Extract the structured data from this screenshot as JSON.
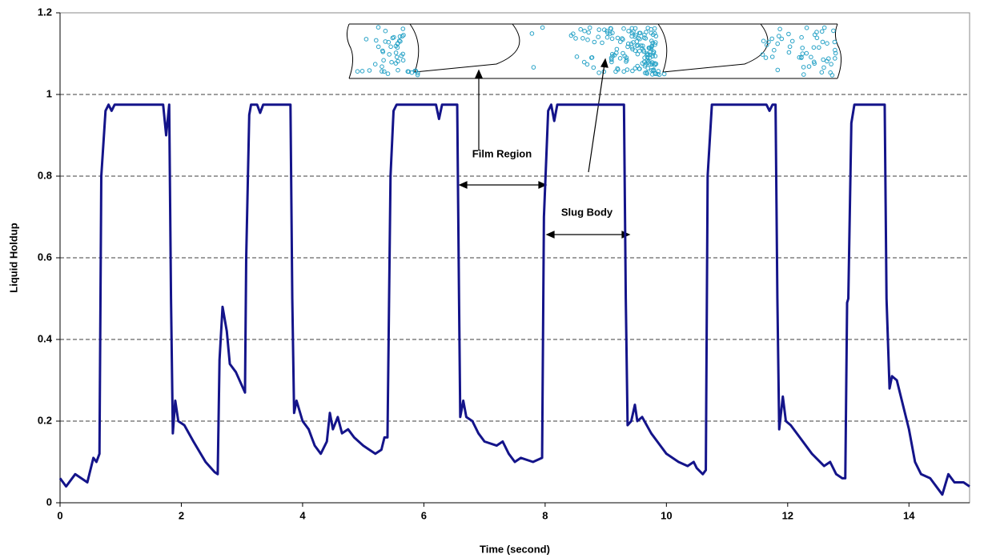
{
  "chart_data": {
    "type": "line",
    "x_label": "Time (second)",
    "y_label": "Liquid Holdup",
    "annotations": [
      "Film Region",
      "Slug Body"
    ],
    "xlim": [
      0,
      15
    ],
    "xticks": [
      0,
      2,
      4,
      6,
      8,
      10,
      12,
      14
    ],
    "ylim": [
      0,
      1.2
    ],
    "yticks": [
      0,
      0.2,
      0.4,
      0.6,
      0.8,
      1,
      1.2
    ],
    "grid": true,
    "x": [
      0,
      0.1,
      0.25,
      0.35,
      0.45,
      0.55,
      0.6,
      0.65,
      0.68,
      0.75,
      0.8,
      0.85,
      0.9,
      1.7,
      1.75,
      1.8,
      1.83,
      1.86,
      1.9,
      1.95,
      2.05,
      2.2,
      2.4,
      2.55,
      2.6,
      2.63,
      2.68,
      2.75,
      2.8,
      2.9,
      3.05,
      3.07,
      3.12,
      3.15,
      3.25,
      3.3,
      3.35,
      3.8,
      3.83,
      3.86,
      3.9,
      4.0,
      4.1,
      4.2,
      4.3,
      4.4,
      4.45,
      4.5,
      4.58,
      4.65,
      4.75,
      4.85,
      5.0,
      5.1,
      5.2,
      5.3,
      5.35,
      5.4,
      5.45,
      5.5,
      5.55,
      6.2,
      6.25,
      6.3,
      6.55,
      6.58,
      6.6,
      6.65,
      6.7,
      6.8,
      6.9,
      7.0,
      7.2,
      7.3,
      7.4,
      7.5,
      7.6,
      7.8,
      7.95,
      7.98,
      8.05,
      8.1,
      8.15,
      8.2,
      9.3,
      9.33,
      9.36,
      9.42,
      9.48,
      9.52,
      9.6,
      9.75,
      9.9,
      10.0,
      10.2,
      10.35,
      10.45,
      10.5,
      10.6,
      10.65,
      10.68,
      10.75,
      11.65,
      11.7,
      11.75,
      11.8,
      11.83,
      11.86,
      11.92,
      11.97,
      12.05,
      12.2,
      12.4,
      12.6,
      12.7,
      12.8,
      12.9,
      12.95,
      12.98,
      13.0,
      13.05,
      13.1,
      13.6,
      13.63,
      13.68,
      13.72,
      13.8,
      13.9,
      14.0,
      14.1,
      14.2,
      14.35,
      14.5,
      14.55,
      14.65,
      14.75,
      14.9,
      15.0
    ],
    "series": [
      {
        "color": "#14148a",
        "values": [
          0.06,
          0.04,
          0.07,
          0.06,
          0.05,
          0.11,
          0.1,
          0.12,
          0.8,
          0.96,
          0.975,
          0.96,
          0.975,
          0.975,
          0.9,
          0.975,
          0.5,
          0.17,
          0.25,
          0.2,
          0.19,
          0.15,
          0.1,
          0.075,
          0.07,
          0.35,
          0.48,
          0.42,
          0.34,
          0.32,
          0.27,
          0.6,
          0.95,
          0.975,
          0.975,
          0.955,
          0.975,
          0.975,
          0.5,
          0.22,
          0.25,
          0.2,
          0.18,
          0.14,
          0.12,
          0.15,
          0.22,
          0.18,
          0.21,
          0.17,
          0.18,
          0.16,
          0.14,
          0.13,
          0.12,
          0.13,
          0.16,
          0.16,
          0.8,
          0.96,
          0.975,
          0.975,
          0.94,
          0.975,
          0.975,
          0.5,
          0.21,
          0.25,
          0.21,
          0.2,
          0.17,
          0.15,
          0.14,
          0.15,
          0.12,
          0.1,
          0.11,
          0.1,
          0.11,
          0.7,
          0.96,
          0.975,
          0.935,
          0.975,
          0.975,
          0.5,
          0.19,
          0.2,
          0.24,
          0.2,
          0.21,
          0.17,
          0.14,
          0.12,
          0.1,
          0.09,
          0.1,
          0.085,
          0.07,
          0.08,
          0.8,
          0.975,
          0.975,
          0.96,
          0.975,
          0.975,
          0.5,
          0.18,
          0.26,
          0.2,
          0.19,
          0.16,
          0.12,
          0.09,
          0.1,
          0.07,
          0.06,
          0.06,
          0.49,
          0.5,
          0.93,
          0.975,
          0.975,
          0.5,
          0.28,
          0.31,
          0.3,
          0.24,
          0.18,
          0.1,
          0.07,
          0.06,
          0.03,
          0.02,
          0.07,
          0.05,
          0.05,
          0.04
        ]
      }
    ]
  }
}
